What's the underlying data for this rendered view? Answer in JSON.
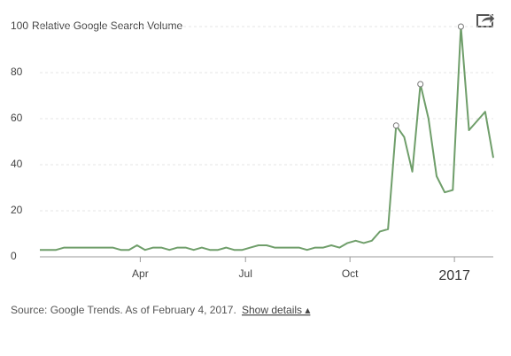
{
  "chart_data": {
    "type": "line",
    "y_label": "Relative Google Search Volume",
    "x": [
      0,
      1,
      2,
      3,
      4,
      5,
      6,
      7,
      8,
      9,
      10,
      11,
      12,
      13,
      14,
      15,
      16,
      17,
      18,
      19,
      20,
      21,
      22,
      23,
      24,
      25,
      26,
      27,
      28,
      29,
      30,
      31,
      32,
      33,
      34,
      35,
      36,
      37,
      38,
      39,
      40,
      41,
      42,
      43,
      44,
      45,
      46,
      47,
      48,
      49,
      50,
      51,
      52,
      53,
      54,
      55,
      56
    ],
    "series": [
      {
        "name": "Relative Google Search Volume",
        "color": "#6f9e6a",
        "values": [
          3,
          3,
          3,
          4,
          4,
          4,
          4,
          4,
          4,
          4,
          3,
          3,
          5,
          3,
          4,
          4,
          3,
          4,
          4,
          3,
          4,
          3,
          3,
          4,
          3,
          3,
          4,
          5,
          5,
          4,
          4,
          4,
          4,
          3,
          4,
          4,
          5,
          4,
          6,
          7,
          6,
          7,
          11,
          12,
          57,
          52,
          37,
          75,
          60,
          35,
          28,
          29,
          100,
          55,
          59,
          63,
          43
        ]
      }
    ],
    "highlighted_points": [
      44,
      47,
      52
    ],
    "xlim": [
      0,
      56
    ],
    "xticks": [
      {
        "value": 12.4,
        "label": "Apr"
      },
      {
        "value": 25.4,
        "label": "Jul"
      },
      {
        "value": 38.3,
        "label": "Oct"
      },
      {
        "value": 51.2,
        "label": "2017"
      }
    ],
    "ylim": [
      0,
      100
    ],
    "yticks": [
      0,
      20,
      40,
      60,
      80,
      100
    ],
    "grid": true,
    "source": "Source: Google Trends. As of February 4, 2017.",
    "link": "Show details ▴"
  }
}
